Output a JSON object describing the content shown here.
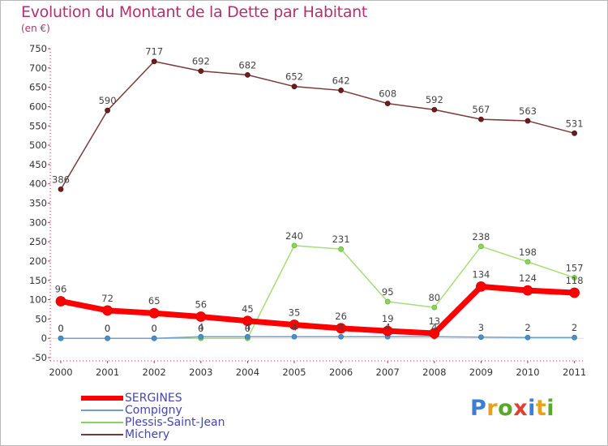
{
  "title": "Evolution du Montant de la Dette par Habitant",
  "subtitle": "(en €)",
  "chart_data": {
    "type": "line",
    "title": "Evolution du Montant de la Dette par Habitant",
    "subtitle": "(en €)",
    "xlabel": "",
    "ylabel": "",
    "x": [
      "2000",
      "2001",
      "2002",
      "2003",
      "2004",
      "2005",
      "2006",
      "2007",
      "2008",
      "2009",
      "2010",
      "2011"
    ],
    "ylim": [
      -50,
      750
    ],
    "yticks": [
      -50,
      0,
      50,
      100,
      150,
      200,
      250,
      300,
      350,
      400,
      450,
      500,
      550,
      600,
      650,
      700,
      750
    ],
    "grid": false,
    "legend_position": "bottom-left",
    "series": [
      {
        "name": "SERGINES",
        "color": "#ff0000",
        "values": [
          96,
          72,
          65,
          56,
          45,
          35,
          26,
          19,
          13,
          134,
          124,
          118
        ],
        "labels": [
          "96",
          "72",
          "65",
          "56",
          "45",
          "35",
          "26",
          "19",
          "13",
          "134",
          "124",
          "118"
        ]
      },
      {
        "name": "Compigny",
        "color": "#4a8fc8",
        "values": [
          0,
          0,
          0,
          4,
          4,
          4,
          4,
          4,
          4,
          3,
          2,
          2
        ],
        "labels": [
          "0",
          "0",
          "0",
          "4",
          "4",
          "4",
          "4",
          "4",
          "4",
          "3",
          "2",
          "2"
        ]
      },
      {
        "name": "Plessis-Saint-Jean",
        "color": "#8bd35a",
        "values": [
          0,
          0,
          0,
          0,
          0,
          240,
          231,
          95,
          80,
          238,
          198,
          157
        ],
        "labels": [
          "0",
          "0",
          "0",
          "0",
          "0",
          "240",
          "231",
          "95",
          "80",
          "238",
          "198",
          "157"
        ]
      },
      {
        "name": "Michery",
        "color": "#7a3a3a",
        "values": [
          386,
          590,
          717,
          692,
          682,
          652,
          642,
          608,
          592,
          567,
          563,
          531
        ],
        "labels": [
          "386",
          "590",
          "717",
          "692",
          "682",
          "652",
          "642",
          "608",
          "592",
          "567",
          "563",
          "531"
        ]
      }
    ]
  },
  "legend": {
    "items": [
      {
        "label": "SERGINES",
        "color": "#ff0000"
      },
      {
        "label": "Compigny",
        "color": "#6fa0cc"
      },
      {
        "label": "Plessis-Saint-Jean",
        "color": "#8bd35a"
      },
      {
        "label": "Michery",
        "color": "#7a3a3a"
      }
    ]
  },
  "logo": {
    "text": "Proxiti",
    "letter_colors": [
      "#3a7fd5",
      "#e8a020",
      "#5aa82a",
      "#e04030",
      "#3a7fd5",
      "#e8a020",
      "#5aa82a"
    ]
  }
}
